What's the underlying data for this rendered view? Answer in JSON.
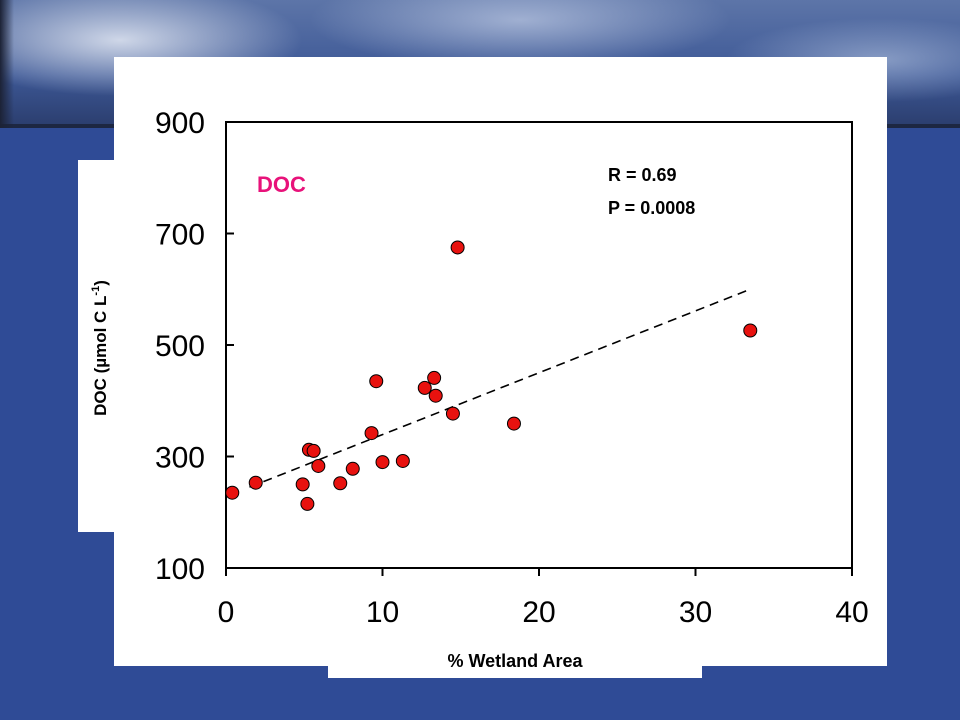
{
  "chart_data": {
    "type": "scatter",
    "title": "DOC",
    "xlabel": "% Wetland Area",
    "ylabel_main": "DOC (µmol C L",
    "ylabel_sup": "-1",
    "ylabel_close": ")",
    "xlim": [
      0,
      40
    ],
    "ylim": [
      100,
      900
    ],
    "xticks": [
      0,
      10,
      20,
      30,
      40
    ],
    "yticks": [
      100,
      300,
      500,
      700,
      900
    ],
    "grid": false,
    "point_color": "#e8120f",
    "title_color": "#e8127a",
    "stats": {
      "r_label": "R = 0.69",
      "p_label": "P = 0.0008"
    },
    "points": [
      {
        "x": 0.4,
        "y": 235
      },
      {
        "x": 1.9,
        "y": 253
      },
      {
        "x": 4.9,
        "y": 250
      },
      {
        "x": 5.2,
        "y": 215
      },
      {
        "x": 5.3,
        "y": 312
      },
      {
        "x": 5.6,
        "y": 310
      },
      {
        "x": 5.9,
        "y": 283
      },
      {
        "x": 7.3,
        "y": 252
      },
      {
        "x": 8.1,
        "y": 278
      },
      {
        "x": 9.3,
        "y": 342
      },
      {
        "x": 9.6,
        "y": 435
      },
      {
        "x": 10.0,
        "y": 290
      },
      {
        "x": 11.3,
        "y": 292
      },
      {
        "x": 12.7,
        "y": 423
      },
      {
        "x": 13.3,
        "y": 441
      },
      {
        "x": 13.4,
        "y": 409
      },
      {
        "x": 14.5,
        "y": 377
      },
      {
        "x": 14.8,
        "y": 675
      },
      {
        "x": 18.4,
        "y": 359
      },
      {
        "x": 33.5,
        "y": 526
      }
    ],
    "trendline": {
      "x": [
        1.5,
        33.5
      ],
      "y": [
        245,
        600
      ],
      "style": "dashed"
    }
  }
}
